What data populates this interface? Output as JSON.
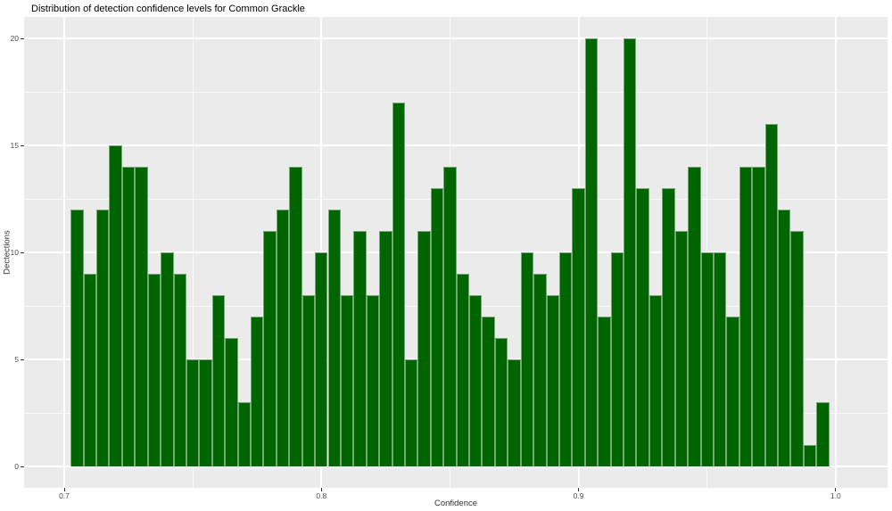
{
  "chart_data": {
    "type": "histogram",
    "title": "Distribution of detection confidence levels for Common Grackle",
    "xlabel": "Confidence",
    "ylabel": "Dectections",
    "bin_start": 0.7025,
    "bin_width": 0.005,
    "counts": [
      12,
      9,
      12,
      15,
      14,
      14,
      9,
      10,
      9,
      5,
      5,
      8,
      6,
      3,
      7,
      11,
      12,
      14,
      8,
      10,
      12,
      8,
      11,
      8,
      11,
      17,
      5,
      11,
      13,
      14,
      9,
      8,
      7,
      6,
      5,
      10,
      9,
      8,
      10,
      13,
      20,
      7,
      10,
      20,
      13,
      8,
      13,
      11,
      14,
      10,
      10,
      7,
      14,
      14,
      16,
      12,
      11,
      1,
      3
    ],
    "x_ticks": [
      0.7,
      0.8,
      0.9,
      1.0
    ],
    "x_tick_labels": [
      "0.7",
      "0.8",
      "0.9",
      "1.0"
    ],
    "x_minor_ticks": [
      0.75,
      0.85,
      0.95
    ],
    "y_ticks": [
      0,
      5,
      10,
      15,
      20
    ],
    "y_tick_labels": [
      "0",
      "5",
      "10",
      "15",
      "20"
    ],
    "y_minor_ticks": [
      2.5,
      7.5,
      12.5,
      17.5
    ],
    "xlim": [
      0.6845,
      1.0202
    ],
    "ylim": [
      -1,
      21
    ],
    "grid": "on",
    "legend": "none",
    "colors": {
      "bar_fill": "#006400",
      "bar_edge": "rgba(255,255,255,0.45)",
      "panel_background": "#EBEBEB",
      "gridline": "#FFFFFF",
      "tick_text": "#4D4D4D",
      "axis_title_text": "#303030",
      "title_text": "#000000"
    }
  }
}
